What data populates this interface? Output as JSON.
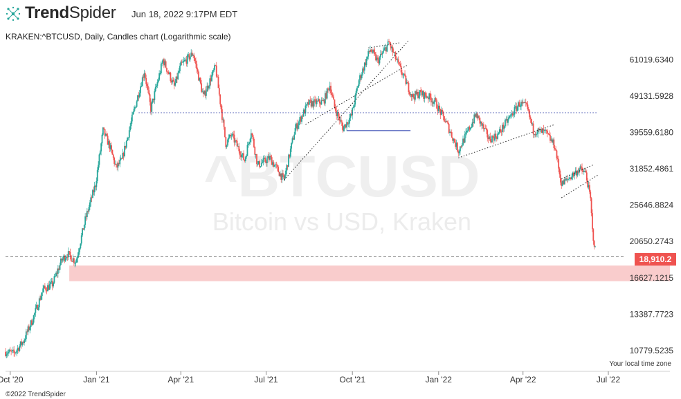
{
  "header": {
    "brand_bold": "Trend",
    "brand_light": "Spider",
    "timestamp": "Jun 18, 2022 9:17PM EDT"
  },
  "subtitle": "KRAKEN:^BTCUSD, Daily, Candles chart (Logarithmic scale)",
  "watermark": {
    "symbol": "^BTCUSD",
    "name": "Bitcoin vs USD, Kraken"
  },
  "footer": {
    "copyright": "©2022 TrendSpider",
    "timezone_note": "Your local time zone"
  },
  "colors": {
    "up": "#26a69a",
    "down": "#ef5350",
    "support_zone": "#f9cccc",
    "badge": "#ef5350",
    "trendline": "#222222",
    "level_line": "#3f51b5"
  },
  "chart_data": {
    "type": "candlestick",
    "symbol": "KRAKEN:^BTCUSD",
    "scale": "log",
    "x_range": [
      "2020-09-26",
      "2022-07-18"
    ],
    "y_range": [
      9800,
      67500
    ],
    "y_ticks": [
      {
        "value": 61019.634,
        "label": "61019.6340"
      },
      {
        "value": 49131.5928,
        "label": "49131.5928"
      },
      {
        "value": 39559.618,
        "label": "39559.6180"
      },
      {
        "value": 31852.4861,
        "label": "31852.4861"
      },
      {
        "value": 25646.8824,
        "label": "25646.8824"
      },
      {
        "value": 20650.2743,
        "label": "20650.2743"
      },
      {
        "value": 16627.1215,
        "label": "16627.1215"
      },
      {
        "value": 13387.7723,
        "label": "13387.7723"
      },
      {
        "value": 10779.5235,
        "label": "10779.5235"
      }
    ],
    "x_ticks": [
      {
        "date": "2020-10-01",
        "label": "Oct '20"
      },
      {
        "date": "2021-01-01",
        "label": "Jan '21"
      },
      {
        "date": "2021-04-01",
        "label": "Apr '21"
      },
      {
        "date": "2021-07-01",
        "label": "Jul '21"
      },
      {
        "date": "2021-10-01",
        "label": "Oct '21"
      },
      {
        "date": "2022-01-01",
        "label": "Jan '22"
      },
      {
        "date": "2022-04-01",
        "label": "Apr '22"
      },
      {
        "date": "2022-07-01",
        "label": "Jul '22"
      }
    ],
    "last_price": {
      "value": 18910.2,
      "label": "18,910.2"
    },
    "close_path": [
      [
        "2020-09-26",
        10700
      ],
      [
        "2020-10-05",
        10600
      ],
      [
        "2020-10-15",
        11400
      ],
      [
        "2020-10-25",
        13000
      ],
      [
        "2020-11-05",
        15500
      ],
      [
        "2020-11-15",
        16000
      ],
      [
        "2020-11-25",
        18500
      ],
      [
        "2020-12-01",
        19200
      ],
      [
        "2020-12-10",
        18300
      ],
      [
        "2020-12-20",
        23500
      ],
      [
        "2020-12-31",
        29000
      ],
      [
        "2021-01-08",
        40000
      ],
      [
        "2021-01-15",
        36500
      ],
      [
        "2021-01-22",
        32000
      ],
      [
        "2021-01-28",
        33500
      ],
      [
        "2021-02-10",
        45000
      ],
      [
        "2021-02-21",
        57000
      ],
      [
        "2021-02-28",
        45500
      ],
      [
        "2021-03-13",
        61000
      ],
      [
        "2021-03-25",
        52000
      ],
      [
        "2021-04-01",
        59000
      ],
      [
        "2021-04-14",
        63500
      ],
      [
        "2021-04-25",
        49000
      ],
      [
        "2021-05-08",
        58500
      ],
      [
        "2021-05-19",
        37000
      ],
      [
        "2021-05-25",
        39000
      ],
      [
        "2021-06-08",
        33500
      ],
      [
        "2021-06-15",
        40000
      ],
      [
        "2021-06-22",
        32500
      ],
      [
        "2021-07-05",
        34000
      ],
      [
        "2021-07-20",
        29800
      ],
      [
        "2021-08-01",
        40500
      ],
      [
        "2021-08-15",
        47000
      ],
      [
        "2021-08-31",
        47500
      ],
      [
        "2021-09-07",
        52500
      ],
      [
        "2021-09-12",
        46000
      ],
      [
        "2021-09-21",
        40500
      ],
      [
        "2021-09-30",
        43800
      ],
      [
        "2021-10-08",
        54000
      ],
      [
        "2021-10-20",
        65000
      ],
      [
        "2021-10-28",
        60500
      ],
      [
        "2021-11-09",
        67500
      ],
      [
        "2021-11-20",
        58500
      ],
      [
        "2021-12-04",
        49000
      ],
      [
        "2021-12-12",
        50000
      ],
      [
        "2021-12-21",
        49000
      ],
      [
        "2021-12-28",
        47500
      ],
      [
        "2022-01-10",
        41500
      ],
      [
        "2022-01-22",
        35500
      ],
      [
        "2022-02-10",
        44000
      ],
      [
        "2022-02-24",
        38000
      ],
      [
        "2022-03-05",
        39000
      ],
      [
        "2022-03-28",
        47000
      ],
      [
        "2022-04-05",
        46000
      ],
      [
        "2022-04-12",
        40000
      ],
      [
        "2022-04-25",
        39500
      ],
      [
        "2022-05-05",
        36500
      ],
      [
        "2022-05-12",
        29000
      ],
      [
        "2022-05-31",
        31800
      ],
      [
        "2022-06-07",
        31000
      ],
      [
        "2022-06-12",
        26500
      ],
      [
        "2022-06-14",
        22000
      ],
      [
        "2022-06-18",
        18910
      ]
    ],
    "annotations": [
      {
        "type": "horizontal_dotted",
        "value": 44500,
        "from": "2021-02-15",
        "to": "2022-06-20"
      },
      {
        "type": "horizontal_solid",
        "value": 40000,
        "from": "2021-09-25",
        "to": "2021-12-02"
      },
      {
        "type": "horizontal_dashed",
        "value": 18910.2,
        "from": "2020-09-26",
        "to": "2022-07-18"
      },
      {
        "type": "trend_dotted",
        "from": [
          "2021-07-20",
          29800
        ],
        "to": [
          "2021-11-30",
          68500
        ]
      },
      {
        "type": "trend_dotted",
        "from": [
          "2021-08-12",
          41500
        ],
        "to": [
          "2021-11-28",
          59000
        ]
      },
      {
        "type": "trend_dotted",
        "from": [
          "2021-10-18",
          65500
        ],
        "to": [
          "2021-11-20",
          67500
        ]
      },
      {
        "type": "trend_dotted",
        "from": [
          "2022-01-22",
          34000
        ],
        "to": [
          "2022-05-05",
          41500
        ]
      },
      {
        "type": "trend_dotted",
        "from": [
          "2022-05-12",
          26800
        ],
        "to": [
          "2022-06-20",
          30700
        ]
      },
      {
        "type": "trend_dotted",
        "from": [
          "2022-05-12",
          30000
        ],
        "to": [
          "2022-06-16",
          32700
        ]
      }
    ],
    "support_zone": {
      "low": 16300,
      "high": 17900,
      "from": "2020-12-03",
      "to": "2022-07-18"
    }
  }
}
